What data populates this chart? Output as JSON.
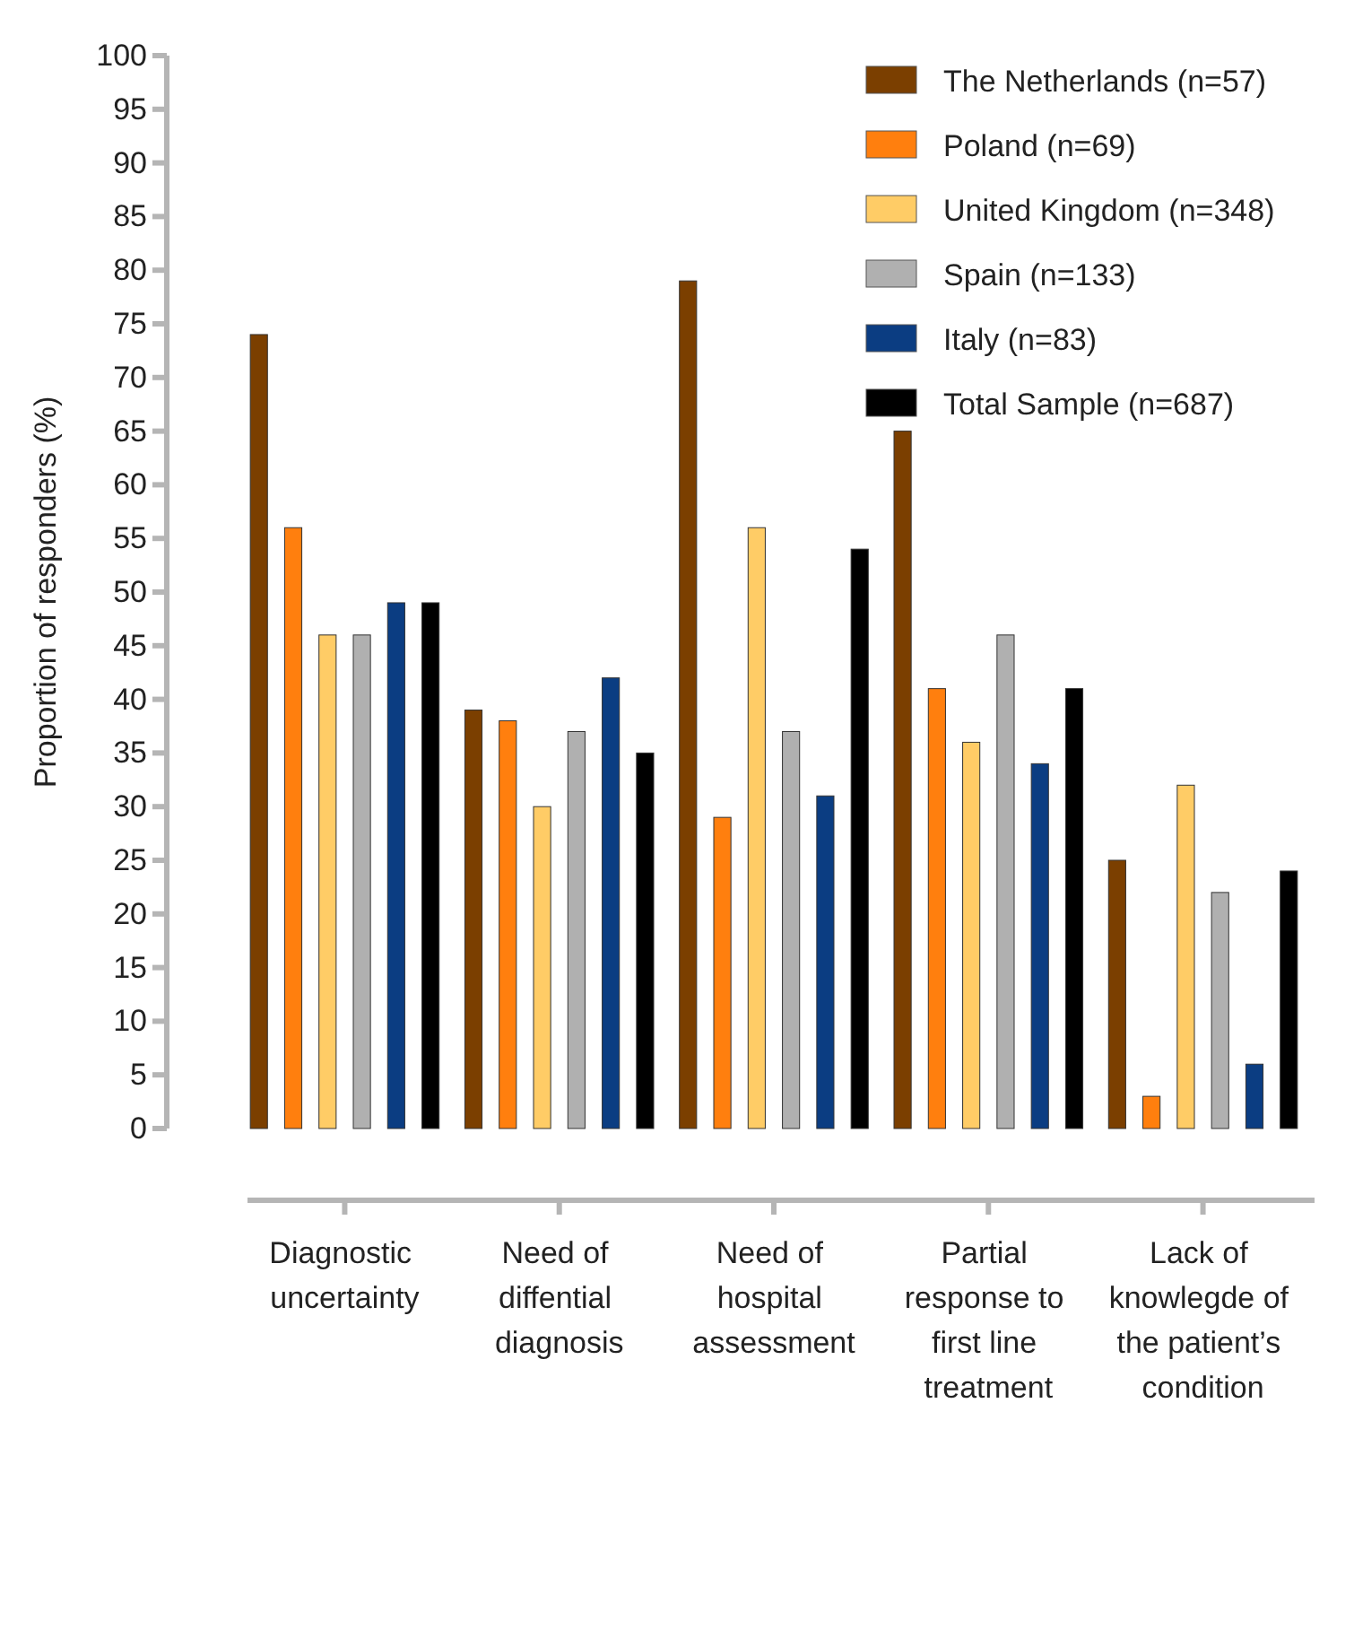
{
  "chart_data": {
    "type": "bar",
    "ylabel": "Proportion of responders (%)",
    "categories": [
      "Diagnostic uncertainty",
      "Need of diffential diagnosis",
      "Need of hospital assessment",
      "Partial response to first line treatment",
      "Lack of knowlegde of the patient’s condition"
    ],
    "series": [
      {
        "name": "The Netherlands (n=57)",
        "color": "#7b3f00",
        "values": [
          74,
          39,
          79,
          65,
          25
        ]
      },
      {
        "name": "Poland (n=69)",
        "color": "#ff7f0e",
        "values": [
          56,
          38,
          29,
          41,
          3
        ]
      },
      {
        "name": "United Kingdom (n=348)",
        "color": "#ffcc66",
        "values": [
          46,
          30,
          56,
          36,
          32
        ]
      },
      {
        "name": "Spain (n=133)",
        "color": "#b0b0b0",
        "values": [
          46,
          37,
          37,
          46,
          22
        ]
      },
      {
        "name": "Italy (n=83)",
        "color": "#0b3d82",
        "values": [
          49,
          42,
          31,
          34,
          6
        ]
      },
      {
        "name": "Total Sample (n=687)",
        "color": "#000000",
        "values": [
          49,
          35,
          54,
          41,
          24
        ]
      }
    ],
    "ylim": [
      0,
      100
    ],
    "yticks": [
      0,
      5,
      10,
      15,
      20,
      25,
      30,
      35,
      40,
      45,
      50,
      55,
      60,
      65,
      70,
      75,
      80,
      85,
      90,
      95,
      100
    ],
    "grid": false,
    "legend": "top right"
  }
}
